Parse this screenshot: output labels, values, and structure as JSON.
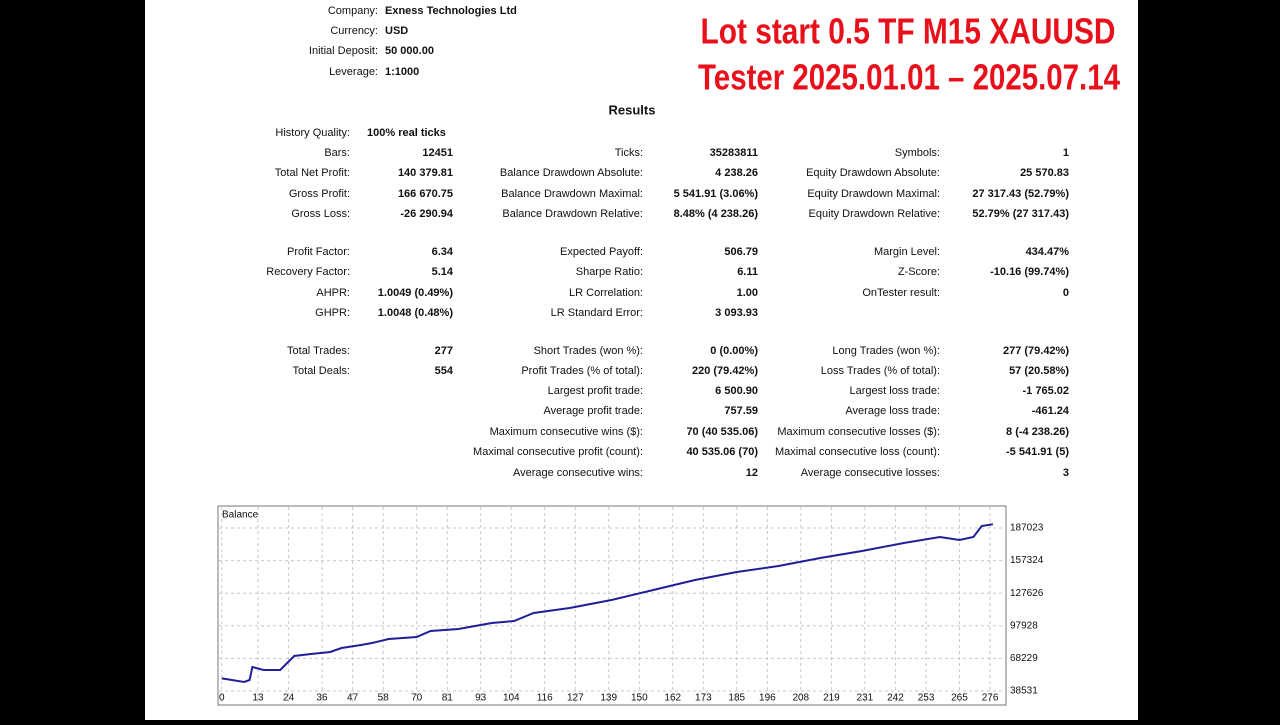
{
  "overlay": [
    "Lot start 0.5   TF M15  XAUUSD",
    "Tester 2025.01.01 – 2025.07.14"
  ],
  "header": {
    "rows": [
      [
        "Company:",
        "Exness Technologies Ltd"
      ],
      [
        "Currency:",
        "USD"
      ],
      [
        "Initial Deposit:",
        "50 000.00"
      ],
      [
        "Leverage:",
        "1:1000"
      ]
    ]
  },
  "results": {
    "title": "Results",
    "history_quality": [
      "History Quality:",
      "100% real ticks"
    ],
    "rows": [
      [
        "Bars:",
        "12451",
        "Ticks:",
        "35283811",
        "Symbols:",
        "1"
      ],
      [
        "Total Net Profit:",
        "140 379.81",
        "Balance Drawdown Absolute:",
        "4 238.26",
        "Equity Drawdown Absolute:",
        "25 570.83"
      ],
      [
        "Gross Profit:",
        "166 670.75",
        "Balance Drawdown Maximal:",
        "5 541.91 (3.06%)",
        "Equity Drawdown Maximal:",
        "27 317.43 (52.79%)"
      ],
      [
        "Gross Loss:",
        "-26 290.94",
        "Balance Drawdown Relative:",
        "8.48% (4 238.26)",
        "Equity Drawdown Relative:",
        "52.79% (27 317.43)"
      ],
      [
        "Profit Factor:",
        "6.34",
        "Expected Payoff:",
        "506.79",
        "Margin Level:",
        "434.47%"
      ],
      [
        "Recovery Factor:",
        "5.14",
        "Sharpe Ratio:",
        "6.11",
        "Z-Score:",
        "-10.16 (99.74%)"
      ],
      [
        "AHPR:",
        "1.0049 (0.49%)",
        "LR Correlation:",
        "1.00",
        "OnTester result:",
        "0"
      ],
      [
        "GHPR:",
        "1.0048 (0.48%)",
        "LR Standard Error:",
        "3 093.93",
        null,
        null
      ],
      [
        "Total Trades:",
        "277",
        "Short Trades (won %):",
        "0 (0.00%)",
        "Long Trades (won %):",
        "277 (79.42%)"
      ],
      [
        "Total Deals:",
        "554",
        "Profit Trades (% of total):",
        "220 (79.42%)",
        "Loss Trades (% of total):",
        "57 (20.58%)"
      ],
      [
        null,
        null,
        "Largest profit trade:",
        "6 500.90",
        "Largest loss trade:",
        "-1 765.02"
      ],
      [
        null,
        null,
        "Average profit trade:",
        "757.59",
        "Average loss trade:",
        "-461.24"
      ],
      [
        null,
        null,
        "Maximum consecutive wins ($):",
        "70 (40 535.06)",
        "Maximum consecutive losses ($):",
        "8 (-4 238.26)"
      ],
      [
        null,
        null,
        "Maximal consecutive profit (count):",
        "40 535.06 (70)",
        "Maximal consecutive loss (count):",
        "-5 541.91 (5)"
      ],
      [
        null,
        null,
        "Average consecutive wins:",
        "12",
        "Average consecutive losses:",
        "3"
      ]
    ]
  },
  "chart_data": {
    "type": "line",
    "title": "Balance",
    "color": "#1f1f9a",
    "grid": true,
    "x": [
      0,
      8,
      10,
      11,
      15,
      21,
      26,
      32,
      39,
      43,
      50,
      54,
      60,
      70,
      75,
      85,
      97,
      105,
      112,
      125,
      140,
      155,
      170,
      185,
      200,
      215,
      230,
      245,
      258,
      265,
      270,
      273,
      277
    ],
    "values": [
      50000,
      46730,
      48552,
      60395,
      57662,
      57662,
      70416,
      72238,
      74060,
      77704,
      80437,
      82259,
      85903,
      87725,
      93191,
      95013,
      100479,
      102301,
      109589,
      114144,
      121432,
      130541,
      139652,
      146940,
      152406,
      159694,
      166071,
      173359,
      178825,
      176092,
      178825,
      188846,
      190380
    ],
    "xlim": [
      -1,
      281
    ],
    "ylim": [
      26688,
      206154
    ],
    "xticks": [
      0,
      13,
      24,
      36,
      47,
      58,
      70,
      81,
      93,
      104,
      116,
      127,
      139,
      150,
      162,
      173,
      185,
      196,
      208,
      219,
      231,
      242,
      253,
      265,
      276
    ],
    "yticks": [
      38531,
      68229,
      97928,
      127626,
      157324,
      187023
    ]
  }
}
